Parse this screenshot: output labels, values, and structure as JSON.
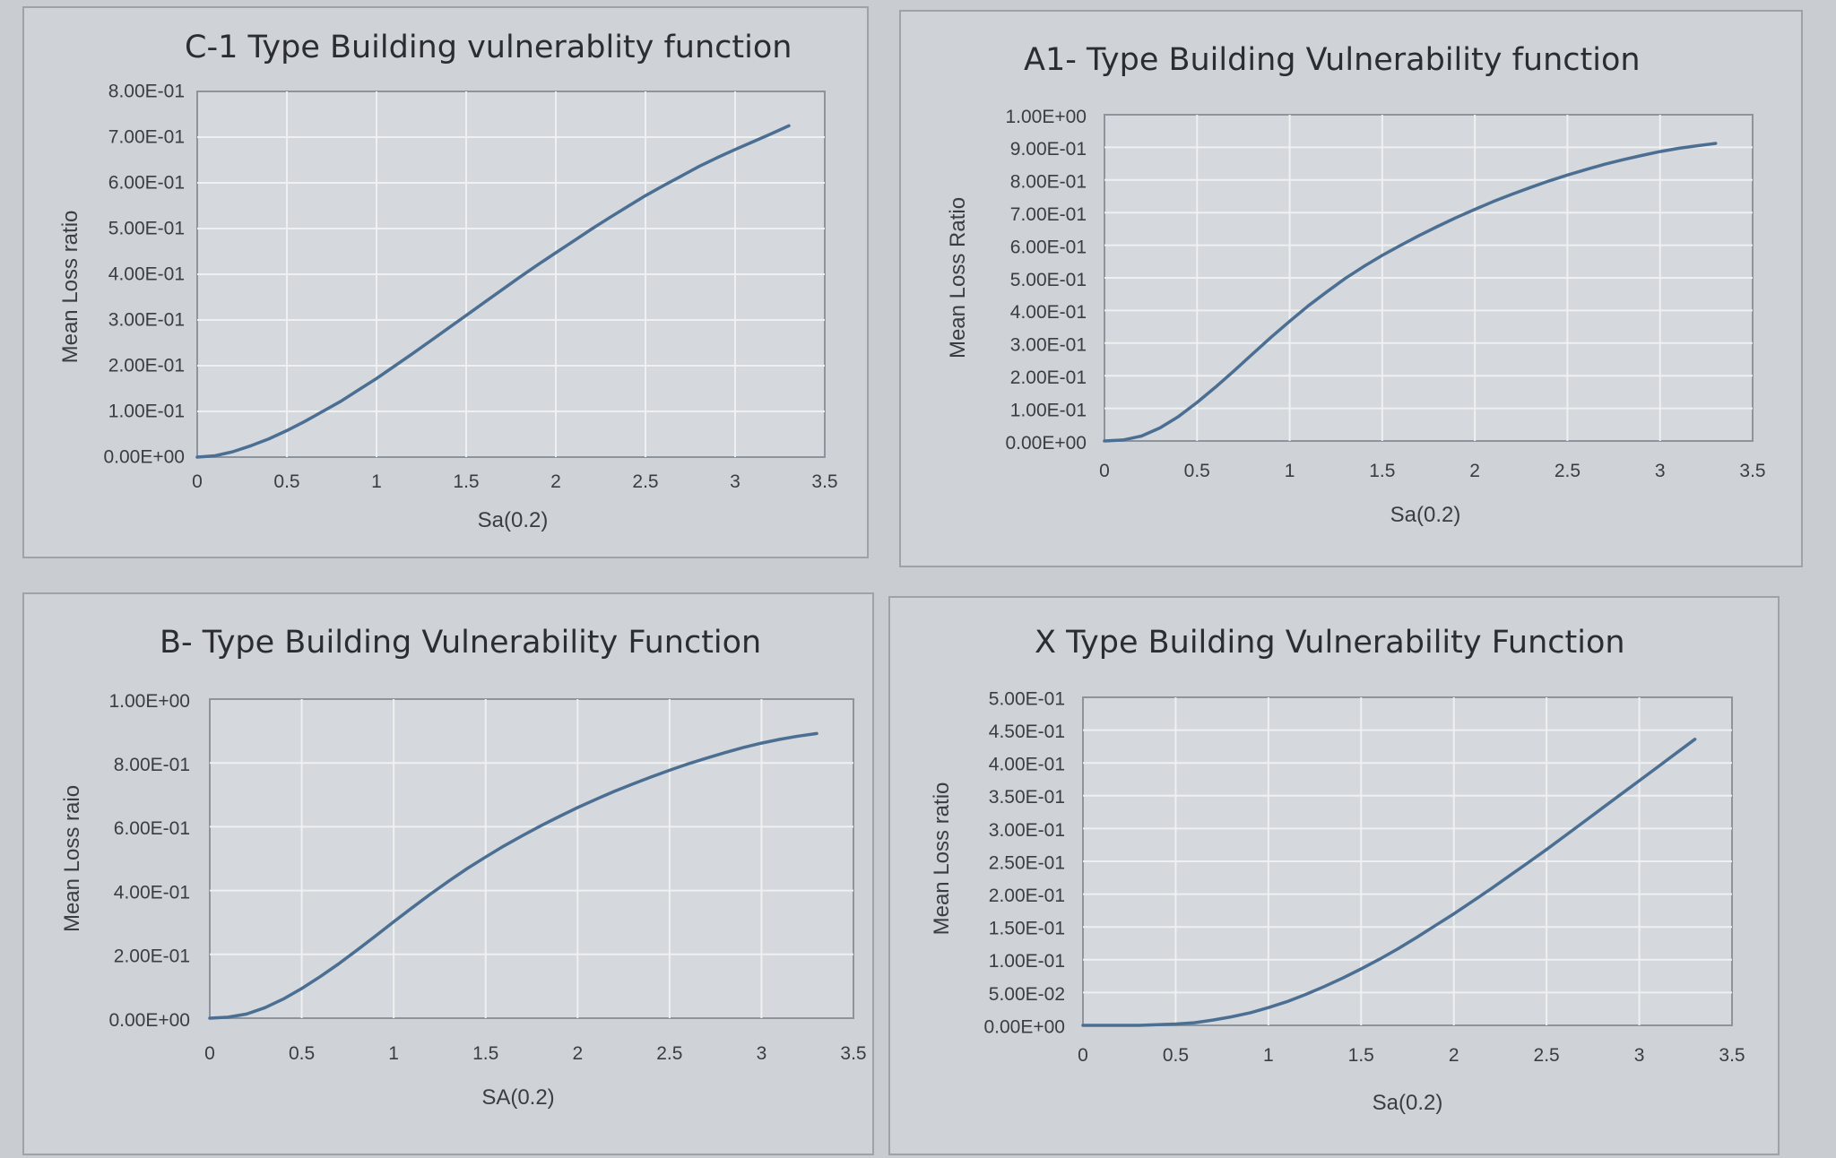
{
  "chart_data": [
    {
      "type": "line",
      "title": "C-1 Type Building vulnerablity function",
      "xlabel": "Sa(0.2)",
      "ylabel": "Mean Loss ratio",
      "xlim": [
        0,
        3.5
      ],
      "ylim": [
        0,
        0.8
      ],
      "xticks": [
        "0",
        "0.5",
        "1",
        "1.5",
        "2",
        "2.5",
        "3",
        "3.5"
      ],
      "yticks": [
        "0.00E+00",
        "1.00E-01",
        "2.00E-01",
        "3.00E-01",
        "4.00E-01",
        "5.00E-01",
        "6.00E-01",
        "7.00E-01",
        "8.00E-01"
      ],
      "grid": true,
      "series": [
        {
          "x": [
            0,
            0.1,
            0.2,
            0.3,
            0.4,
            0.5,
            0.6,
            0.7,
            0.8,
            0.9,
            1.0,
            1.1,
            1.2,
            1.3,
            1.4,
            1.5,
            1.6,
            1.7,
            1.8,
            1.9,
            2.0,
            2.1,
            2.2,
            2.3,
            2.4,
            2.5,
            2.6,
            2.7,
            2.8,
            2.9,
            3.0,
            3.1,
            3.2,
            3.3
          ],
          "y": [
            0.0,
            0.003,
            0.012,
            0.025,
            0.04,
            0.058,
            0.078,
            0.1,
            0.122,
            0.147,
            0.172,
            0.199,
            0.226,
            0.254,
            0.282,
            0.31,
            0.338,
            0.366,
            0.394,
            0.421,
            0.447,
            0.473,
            0.499,
            0.524,
            0.548,
            0.572,
            0.594,
            0.615,
            0.636,
            0.655,
            0.673,
            0.69,
            0.707,
            0.725
          ]
        }
      ]
    },
    {
      "type": "line",
      "title": "A1- Type Building Vulnerability function",
      "xlabel": "Sa(0.2)",
      "ylabel": "Mean Loss Ratio",
      "xlim": [
        0,
        3.5
      ],
      "ylim": [
        0,
        1.0
      ],
      "xticks": [
        "0",
        "0.5",
        "1",
        "1.5",
        "2",
        "2.5",
        "3",
        "3.5"
      ],
      "yticks": [
        "0.00E+00",
        "1.00E-01",
        "2.00E-01",
        "3.00E-01",
        "4.00E-01",
        "5.00E-01",
        "6.00E-01",
        "7.00E-01",
        "8.00E-01",
        "9.00E-01",
        "1.00E+00"
      ],
      "grid": true,
      "series": [
        {
          "x": [
            0,
            0.1,
            0.2,
            0.3,
            0.4,
            0.5,
            0.6,
            0.7,
            0.8,
            0.9,
            1.0,
            1.1,
            1.2,
            1.3,
            1.4,
            1.5,
            1.6,
            1.7,
            1.8,
            1.9,
            2.0,
            2.1,
            2.2,
            2.3,
            2.4,
            2.5,
            2.6,
            2.7,
            2.8,
            2.9,
            3.0,
            3.1,
            3.2,
            3.3
          ],
          "y": [
            0.0,
            0.003,
            0.015,
            0.04,
            0.075,
            0.118,
            0.165,
            0.215,
            0.267,
            0.318,
            0.367,
            0.414,
            0.457,
            0.498,
            0.535,
            0.569,
            0.6,
            0.63,
            0.658,
            0.685,
            0.71,
            0.734,
            0.756,
            0.777,
            0.797,
            0.815,
            0.832,
            0.848,
            0.862,
            0.875,
            0.887,
            0.897,
            0.905,
            0.912
          ]
        }
      ]
    },
    {
      "type": "line",
      "title": "B- Type Building Vulnerability Function",
      "xlabel": "SA(0.2)",
      "ylabel": "Mean Loss raio",
      "xlim": [
        0,
        3.5
      ],
      "ylim": [
        0,
        1.0
      ],
      "xticks": [
        "0",
        "0.5",
        "1",
        "1.5",
        "2",
        "2.5",
        "3",
        "3.5"
      ],
      "yticks": [
        "0.00E+00",
        "2.00E-01",
        "4.00E-01",
        "6.00E-01",
        "8.00E-01",
        "1.00E+00"
      ],
      "grid": true,
      "series": [
        {
          "x": [
            0,
            0.1,
            0.2,
            0.3,
            0.4,
            0.5,
            0.6,
            0.7,
            0.8,
            0.9,
            1.0,
            1.1,
            1.2,
            1.3,
            1.4,
            1.5,
            1.6,
            1.7,
            1.8,
            1.9,
            2.0,
            2.1,
            2.2,
            2.3,
            2.4,
            2.5,
            2.6,
            2.7,
            2.8,
            2.9,
            3.0,
            3.1,
            3.2,
            3.3
          ],
          "y": [
            0.0,
            0.003,
            0.013,
            0.033,
            0.06,
            0.093,
            0.13,
            0.17,
            0.213,
            0.257,
            0.302,
            0.346,
            0.389,
            0.43,
            0.469,
            0.505,
            0.54,
            0.572,
            0.603,
            0.632,
            0.66,
            0.686,
            0.711,
            0.734,
            0.756,
            0.777,
            0.797,
            0.815,
            0.832,
            0.848,
            0.862,
            0.874,
            0.884,
            0.892
          ]
        }
      ]
    },
    {
      "type": "line",
      "title": "X Type Building Vulnerability Function",
      "xlabel": "Sa(0.2)",
      "ylabel": "Mean Loss ratio",
      "xlim": [
        0,
        3.5
      ],
      "ylim": [
        0,
        0.5
      ],
      "xticks": [
        "0",
        "0.5",
        "1",
        "1.5",
        "2",
        "2.5",
        "3",
        "3.5"
      ],
      "yticks": [
        "0.00E+00",
        "5.00E-02",
        "1.00E-01",
        "1.50E-01",
        "2.00E-01",
        "2.50E-01",
        "3.00E-01",
        "3.50E-01",
        "4.00E-01",
        "4.50E-01",
        "5.00E-01"
      ],
      "grid": true,
      "series": [
        {
          "x": [
            0,
            0.1,
            0.2,
            0.3,
            0.4,
            0.5,
            0.6,
            0.7,
            0.8,
            0.9,
            1.0,
            1.1,
            1.2,
            1.3,
            1.4,
            1.5,
            1.6,
            1.7,
            1.8,
            1.9,
            2.0,
            2.1,
            2.2,
            2.3,
            2.4,
            2.5,
            2.6,
            2.7,
            2.8,
            2.9,
            3.0,
            3.1,
            3.2,
            3.3
          ],
          "y": [
            0.0,
            0.0,
            0.0,
            0.0,
            0.001,
            0.002,
            0.004,
            0.008,
            0.013,
            0.019,
            0.027,
            0.036,
            0.047,
            0.059,
            0.072,
            0.086,
            0.101,
            0.117,
            0.134,
            0.152,
            0.17,
            0.189,
            0.208,
            0.228,
            0.248,
            0.268,
            0.289,
            0.31,
            0.331,
            0.352,
            0.373,
            0.394,
            0.415,
            0.436
          ]
        }
      ]
    }
  ]
}
